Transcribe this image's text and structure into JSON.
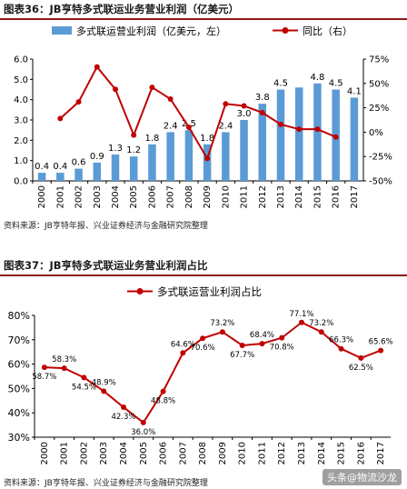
{
  "figure1": {
    "title": "图表36：JB亨特多式联运业务营业利润（亿美元）",
    "source": "资料来源：JB亨特年报、兴业证券经济与金融研究院整理"
  },
  "figure2": {
    "title": "图表37：JB亨特多式联运业务营业利润占比",
    "source": "资料来源：JB亨特年报、兴业证券经济与金融研究院整理"
  },
  "watermark": "头条@物流沙龙",
  "colors": {
    "bar": "#5b9bd5",
    "line": "#c00000",
    "header_rule": "#8a1a1a"
  },
  "chart_data": [
    {
      "type": "bar",
      "categories": [
        "2000",
        "2001",
        "2002",
        "2003",
        "2004",
        "2005",
        "2006",
        "2007",
        "2008",
        "2009",
        "2010",
        "2011",
        "2012",
        "2013",
        "2014",
        "2015",
        "2016",
        "2017"
      ],
      "series": [
        {
          "name": "多式联运营业利润（亿美元，左）",
          "type": "bar",
          "axis": "left",
          "values": [
            0.4,
            0.4,
            0.6,
            0.9,
            1.3,
            1.2,
            1.8,
            2.4,
            2.5,
            1.8,
            2.4,
            3.0,
            3.8,
            4.5,
            4.6,
            4.8,
            4.5,
            4.1
          ],
          "labels": [
            "0.4",
            "0.4",
            "0.6",
            "0.9",
            "1.3",
            "1.2",
            "1.8",
            "2.4",
            "2.5",
            "1.8",
            "2.4",
            "3.0",
            "3.8",
            "4.5",
            "4.6",
            "4.8",
            "4.5",
            "4.1"
          ],
          "label_shown": [
            true,
            true,
            true,
            true,
            true,
            true,
            true,
            true,
            true,
            true,
            true,
            true,
            true,
            true,
            false,
            true,
            true,
            true
          ]
        },
        {
          "name": "同比（右）",
          "type": "line",
          "axis": "right",
          "values": [
            null,
            14,
            31,
            67,
            44,
            -3,
            46,
            34,
            5,
            -27,
            29,
            27,
            20,
            8,
            3,
            3,
            -5,
            null
          ]
        }
      ],
      "ylim": [
        0,
        6
      ],
      "yticks": [
        "0.0",
        "1.0",
        "2.0",
        "3.0",
        "4.0",
        "5.0",
        "6.0"
      ],
      "y2lim": [
        -50,
        75
      ],
      "y2ticks": [
        "-50%",
        "-25%",
        "0%",
        "25%",
        "50%",
        "75%"
      ],
      "legend": "top",
      "grid": false
    },
    {
      "type": "line",
      "categories": [
        "2000",
        "2001",
        "2002",
        "2003",
        "2004",
        "2005",
        "2006",
        "2007",
        "2008",
        "2009",
        "2010",
        "2011",
        "2012",
        "2013",
        "2014",
        "2015",
        "2016",
        "2017"
      ],
      "series": [
        {
          "name": "多式联运营业利润占比",
          "values": [
            58.7,
            58.3,
            54.5,
            48.9,
            42.3,
            36.0,
            48.8,
            64.6,
            70.6,
            73.2,
            67.7,
            68.4,
            70.8,
            77.1,
            73.2,
            66.3,
            62.5,
            65.6
          ],
          "labels": [
            "58.7%",
            "58.3%",
            "54.5%",
            "48.9%",
            "42.3%",
            "36.0%",
            "48.8%",
            "64.6%",
            "70.6%",
            "73.2%",
            "67.7%",
            "68.4%",
            "70.8%",
            "77.1%",
            "73.2%",
            "66.3%",
            "62.5%",
            "65.6%"
          ],
          "label_pos": [
            "below",
            "above",
            "below",
            "above",
            "below",
            "below",
            "below",
            "above",
            "below",
            "above",
            "below",
            "above",
            "below",
            "above",
            "above",
            "above",
            "below",
            "above"
          ]
        }
      ],
      "ylim": [
        30,
        80
      ],
      "yticks": [
        "30%",
        "40%",
        "50%",
        "60%",
        "70%",
        "80%"
      ],
      "legend": "top",
      "grid": false
    }
  ]
}
